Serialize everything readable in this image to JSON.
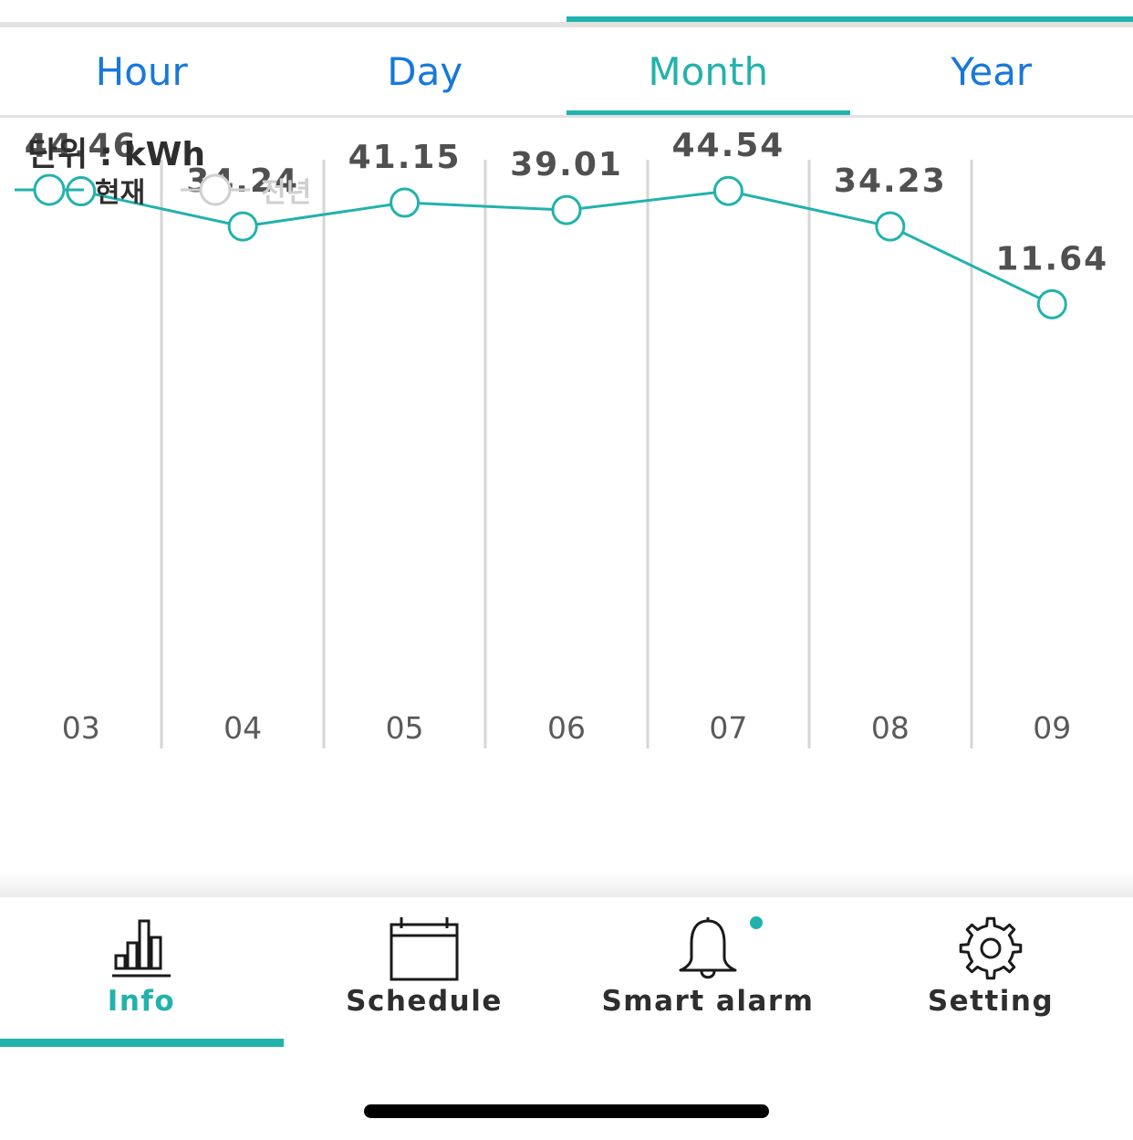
{
  "tabs": [
    {
      "label": "Hour",
      "active": false
    },
    {
      "label": "Day",
      "active": false
    },
    {
      "label": "Month",
      "active": true
    },
    {
      "label": "Year",
      "active": false
    }
  ],
  "unit_label": "단위 : kWh",
  "legend": {
    "current": "현재",
    "previous": "전년"
  },
  "colors": {
    "accent": "#22b2ad",
    "tab_text": "#1778dc",
    "grid": "#d6d6d6",
    "value_text": "#505050",
    "axis_text": "#5a5a5a"
  },
  "chart_data": {
    "type": "line",
    "categories": [
      "03",
      "04",
      "05",
      "06",
      "07",
      "08",
      "09"
    ],
    "series": [
      {
        "name": "현재",
        "values": [
          44.46,
          34.24,
          41.15,
          39.01,
          44.54,
          34.23,
          11.64
        ]
      }
    ],
    "ylim": [
      -120,
      100
    ],
    "grid": "vertical"
  },
  "nav": [
    {
      "label": "Info",
      "icon": "bar-chart-icon",
      "active": true
    },
    {
      "label": "Schedule",
      "icon": "calendar-icon",
      "active": false
    },
    {
      "label": "Smart alarm",
      "icon": "bell-icon",
      "active": false,
      "badge": true
    },
    {
      "label": "Setting",
      "icon": "gear-icon",
      "active": false
    }
  ]
}
